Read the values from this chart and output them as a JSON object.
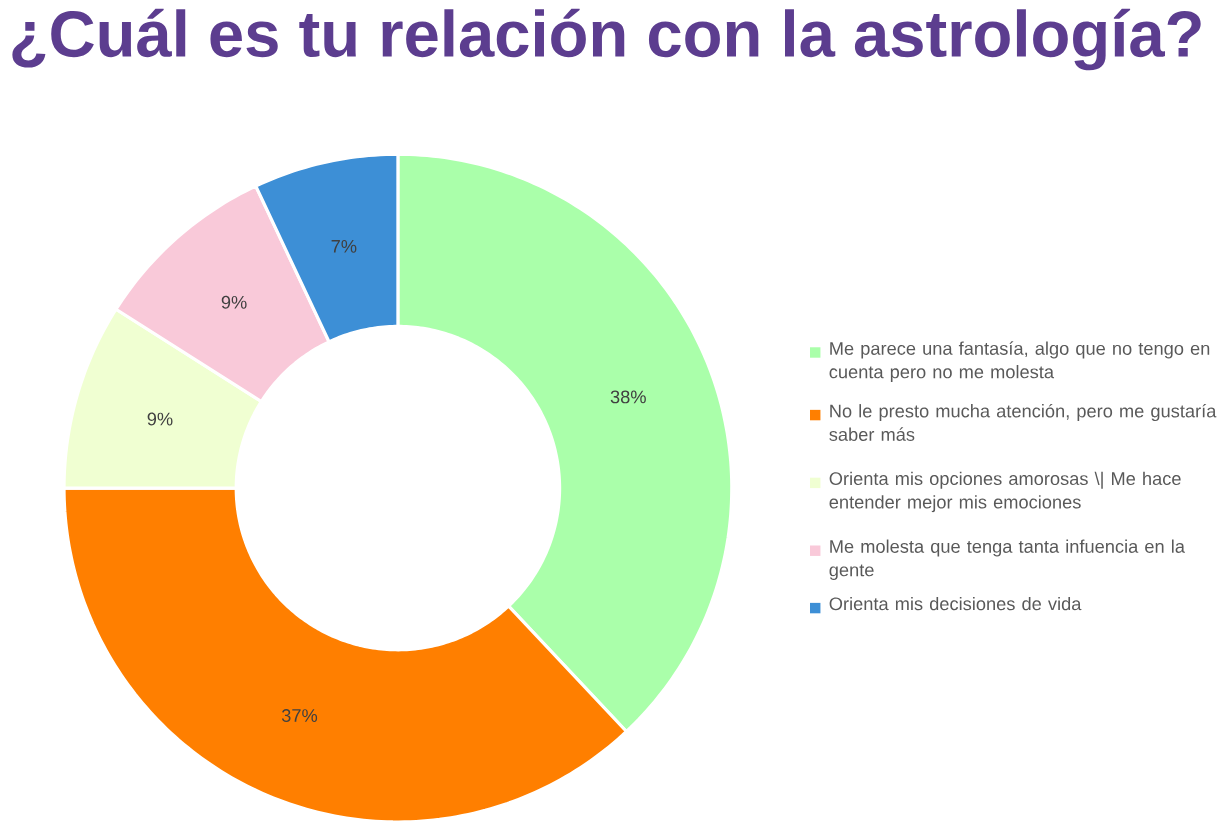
{
  "chart_data": {
    "type": "donut",
    "title": "¿Cuál es tu relación con la astrología?",
    "categories": [
      "Me parece una fantasía, algo que no tengo en cuenta pero no me molesta",
      "No le presto mucha atención, pero me gustaría saber más",
      "Orienta mis opciones amorosas \\| Me hace entender mejor mis emociones",
      "Me molesta que tenga tanta infuencia en la gente",
      "Orienta mis decisiones de vida"
    ],
    "values": [
      38,
      37,
      9,
      9,
      7
    ],
    "value_labels": [
      "38%",
      "37%",
      "9%",
      "9%",
      "7%"
    ],
    "colors": [
      "#aaffaa",
      "#ff7f00",
      "#f0ffd2",
      "#f9c9d9",
      "#3d8fd6"
    ],
    "legend": "right"
  }
}
